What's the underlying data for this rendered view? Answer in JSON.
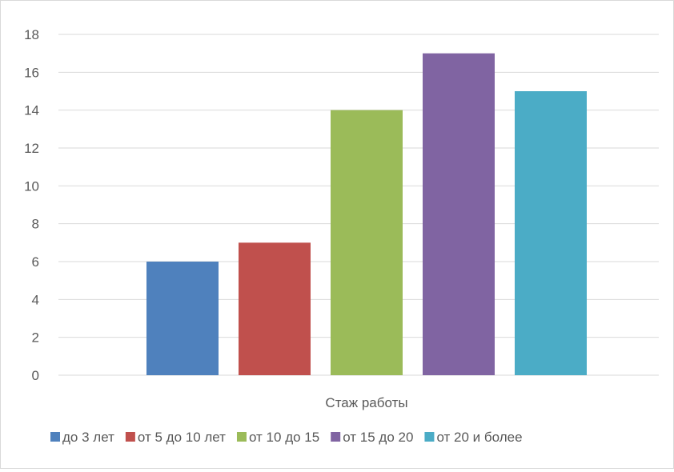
{
  "chart_data": {
    "type": "bar",
    "categories": [
      "Стаж работы"
    ],
    "series": [
      {
        "name": "до 3 лет",
        "values": [
          6
        ],
        "color": "#4f81bd"
      },
      {
        "name": "от 5 до 10 лет",
        "values": [
          7
        ],
        "color": "#c0504d"
      },
      {
        "name": "от 10 до 15",
        "values": [
          14
        ],
        "color": "#9bbb59"
      },
      {
        "name": "от 15 до 20",
        "values": [
          17
        ],
        "color": "#8064a2"
      },
      {
        "name": "от 20 и более",
        "values": [
          15
        ],
        "color": "#4bacc6"
      }
    ],
    "title": "",
    "xlabel": "",
    "ylabel": "",
    "ylim": [
      0,
      18
    ],
    "yticks": [
      "0",
      "2",
      "4",
      "6",
      "8",
      "10",
      "12",
      "14",
      "16",
      "18"
    ],
    "grid": true,
    "legend_position": "bottom",
    "gridline_color": "#d9d9d9",
    "text_color": "#595959"
  }
}
